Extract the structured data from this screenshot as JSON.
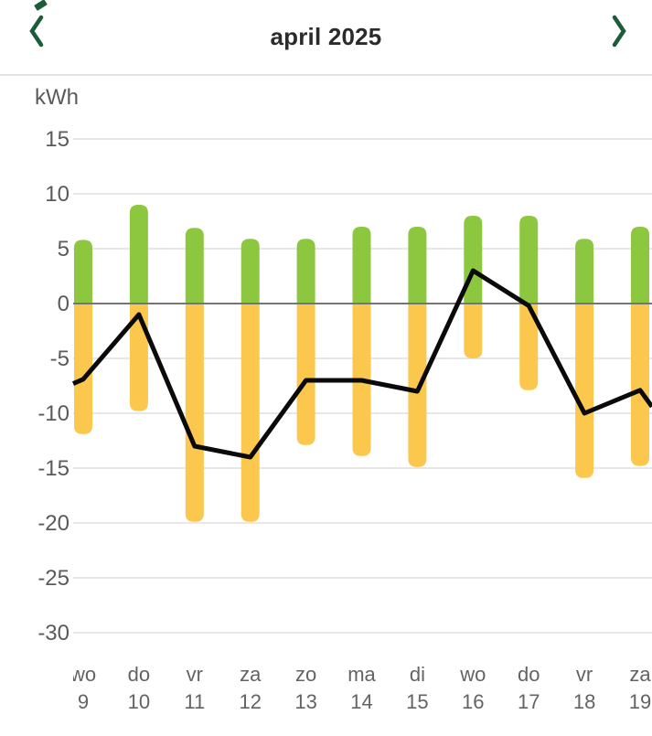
{
  "header": {
    "title": "april 2025"
  },
  "icons": {
    "prev": "chevron-left",
    "next": "chevron-right"
  },
  "colors": {
    "accent_green_dark": "#1C5C38",
    "bar_green": "#8DC63F",
    "bar_yellow": "#FBC74D",
    "line_black": "#0A0A0A",
    "grid_line": "#E7E7E7",
    "zero_line": "#757575",
    "axis_text": "#5A5A5A",
    "day_text": "#636363",
    "title_text": "#2B2B2B"
  },
  "chart_data": {
    "type": "bar",
    "subtype": "pos-neg-bars-with-line",
    "title": "april 2025",
    "unit_label": "kWh",
    "ylabel": "kWh",
    "xlabel": "",
    "y_ticks": [
      15,
      10,
      5,
      0,
      -5,
      -10,
      -15,
      -20,
      -25,
      -30
    ],
    "ylim": [
      -30,
      15
    ],
    "grid": true,
    "legend": "none",
    "categories": [
      {
        "day": "wo",
        "date": "9"
      },
      {
        "day": "do",
        "date": "10"
      },
      {
        "day": "vr",
        "date": "11"
      },
      {
        "day": "za",
        "date": "12"
      },
      {
        "day": "zo",
        "date": "13"
      },
      {
        "day": "ma",
        "date": "14"
      },
      {
        "day": "di",
        "date": "15"
      },
      {
        "day": "wo",
        "date": "16"
      },
      {
        "day": "do",
        "date": "17"
      },
      {
        "day": "vr",
        "date": "18"
      },
      {
        "day": "za",
        "date": "19"
      }
    ],
    "series": [
      {
        "name": "green-bars-positive-kwh",
        "type": "bar",
        "color": "#8DC63F",
        "values": [
          5.8,
          9.0,
          6.9,
          5.9,
          5.9,
          7.0,
          7.0,
          8.0,
          8.0,
          5.9,
          7.0
        ]
      },
      {
        "name": "yellow-bars-negative-kwh",
        "type": "bar",
        "color": "#FBC74D",
        "values": [
          -11.9,
          -9.8,
          -19.9,
          -19.9,
          -12.9,
          -13.9,
          -14.9,
          -5.0,
          -7.9,
          -15.9,
          -14.8
        ]
      },
      {
        "name": "black-net-line-kwh",
        "type": "line",
        "color": "#0A0A0A",
        "values": [
          -6.9,
          -1.0,
          -13.0,
          -14.0,
          -7.0,
          -7.0,
          -8.0,
          3.0,
          -0.2,
          -10.0,
          -7.9
        ],
        "edge_entry_value": -7.3,
        "edge_exit_value": -9.4
      }
    ]
  }
}
